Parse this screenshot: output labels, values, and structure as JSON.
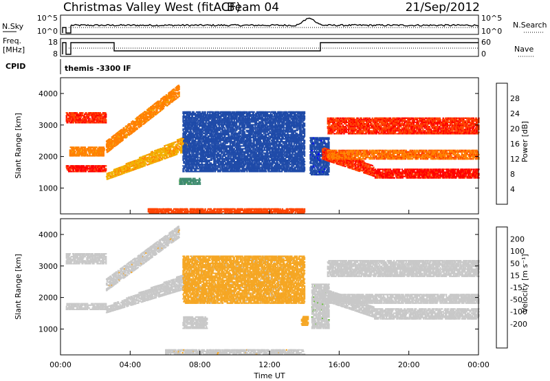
{
  "header": {
    "station": "Christmas Valley West (fitACF)",
    "beam": "Beam 04",
    "date": "21/Sep/2012"
  },
  "summary_panels": {
    "nsky_label": "N.Sky",
    "nsky_ticks": [
      "10^5",
      "10^0"
    ],
    "nsearch_label": "N.Search",
    "nsearch_ticks": [
      "10^5",
      "10^0"
    ],
    "freq_label": [
      "Freq.",
      "[MHz]"
    ],
    "freq_ticks": [
      "18",
      "8"
    ],
    "nave_label": "Nave",
    "nave_ticks": [
      "60",
      "0"
    ],
    "cpid_label": "CPID",
    "cpid_value": "themis -3300 IF"
  },
  "colors": {
    "power": [
      "#0000ff",
      "#1e4aa8",
      "#3c8a6e",
      "#6abf3c",
      "#f2b000",
      "#ff8000",
      "#ff4400",
      "#ff0000"
    ],
    "velocity": [
      "#ff0000",
      "#ff4000",
      "#ff7f00",
      "#f5a623",
      "#c8c8c8",
      "#c8c8c8",
      "#6abf3c",
      "#3c8a3c",
      "#1a5fb4",
      "#0000ff"
    ]
  },
  "chart_data": [
    {
      "type": "heatmap",
      "name": "power-panel",
      "ylabel": "Slant Range [km]",
      "ylim": [
        180,
        4500
      ],
      "yticks": [
        "1000",
        "2000",
        "3000",
        "4000"
      ],
      "xlim_hours": [
        0,
        24
      ],
      "colorbar_label": "Power [dB]",
      "colorbar_ticks": [
        "4",
        "8",
        "12",
        "16",
        "20",
        "24",
        "28"
      ],
      "colorbar_range": [
        0,
        30
      ],
      "bands": [
        {
          "t": [
            0.3,
            2.6
          ],
          "r": [
            3050,
            3400
          ],
          "level": 26
        },
        {
          "t": [
            0.3,
            2.6
          ],
          "r": [
            1500,
            1700
          ],
          "level": 27
        },
        {
          "t": [
            0.5,
            2.5
          ],
          "r": [
            2000,
            2300
          ],
          "level": 20
        },
        {
          "t": [
            2.6,
            6.8
          ],
          "r_start": [
            2100,
            2500
          ],
          "r_end": [
            3900,
            4300
          ],
          "level": 20
        },
        {
          "t": [
            2.6,
            7.4
          ],
          "r_start": [
            1250,
            1450
          ],
          "r_end": [
            2200,
            2700
          ],
          "level": 18
        },
        {
          "t": [
            6.8,
            8.0
          ],
          "r": [
            1100,
            1300
          ],
          "level": 10
        },
        {
          "t": [
            7.0,
            14.0
          ],
          "r": [
            1500,
            3400
          ],
          "level": 6
        },
        {
          "t": [
            14.3,
            15.4
          ],
          "r": [
            1400,
            2600
          ],
          "level": 5
        },
        {
          "t": [
            15.0,
            18.0
          ],
          "r_start": [
            1900,
            2300
          ],
          "r_end": [
            1350,
            1700
          ],
          "level": 26
        },
        {
          "t": [
            18.0,
            24.0
          ],
          "r": [
            1300,
            1600
          ],
          "level": 27
        },
        {
          "t": [
            15.3,
            24.0
          ],
          "r": [
            2700,
            3200
          ],
          "level": 26
        },
        {
          "t": [
            15.3,
            24.0
          ],
          "r": [
            1900,
            2200
          ],
          "level": 22
        },
        {
          "t": [
            5.0,
            14.0
          ],
          "r": [
            180,
            320
          ],
          "level": 24
        }
      ]
    },
    {
      "type": "heatmap",
      "name": "velocity-panel",
      "ylabel": "Slant Range [km]",
      "ylim": [
        180,
        4500
      ],
      "yticks": [
        "1000",
        "2000",
        "3000",
        "4000"
      ],
      "xlabel": "Time UT",
      "xticks": [
        "00:00",
        "04:00",
        "08:00",
        "12:00",
        "16:00",
        "20:00",
        "00:00"
      ],
      "xlim_hours": [
        0,
        24
      ],
      "colorbar_label": "Velocity [m s⁻¹]",
      "colorbar_ticks": [
        "200",
        "100",
        "50",
        "15",
        "-15",
        "-50",
        "-100",
        "-200"
      ],
      "colorbar_range": [
        -250,
        250
      ],
      "bands": [
        {
          "t": [
            0.3,
            2.6
          ],
          "r": [
            3050,
            3400
          ],
          "v": 0
        },
        {
          "t": [
            0.3,
            2.6
          ],
          "r": [
            1600,
            1800
          ],
          "v": 0
        },
        {
          "t": [
            2.6,
            6.8
          ],
          "r_start": [
            2200,
            2600
          ],
          "r_end": [
            3900,
            4300
          ],
          "v": -40
        },
        {
          "t": [
            2.6,
            7.4
          ],
          "r_start": [
            1500,
            1700
          ],
          "r_end": [
            2300,
            2800
          ],
          "v": -30
        },
        {
          "t": [
            7.0,
            8.4
          ],
          "r": [
            1000,
            1400
          ],
          "v": 0
        },
        {
          "t": [
            7.0,
            14.0
          ],
          "r": [
            1800,
            3300
          ],
          "v": -60
        },
        {
          "t": [
            13.8,
            14.2
          ],
          "r": [
            1100,
            1400
          ],
          "v": -80
        },
        {
          "t": [
            14.4,
            15.4
          ],
          "r": [
            1000,
            2400
          ],
          "v": 40
        },
        {
          "t": [
            15.0,
            18.0
          ],
          "r_start": [
            1900,
            2300
          ],
          "r_end": [
            1350,
            1700
          ],
          "v": 0
        },
        {
          "t": [
            18.0,
            24.0
          ],
          "r": [
            1300,
            1650
          ],
          "v": 0
        },
        {
          "t": [
            15.3,
            24.0
          ],
          "r": [
            2650,
            3150
          ],
          "v": 0
        },
        {
          "t": [
            15.3,
            24.0
          ],
          "r": [
            1800,
            2100
          ],
          "v": 0
        },
        {
          "t": [
            6.0,
            14.0
          ],
          "r": [
            180,
            330
          ],
          "v": -40
        }
      ]
    }
  ]
}
